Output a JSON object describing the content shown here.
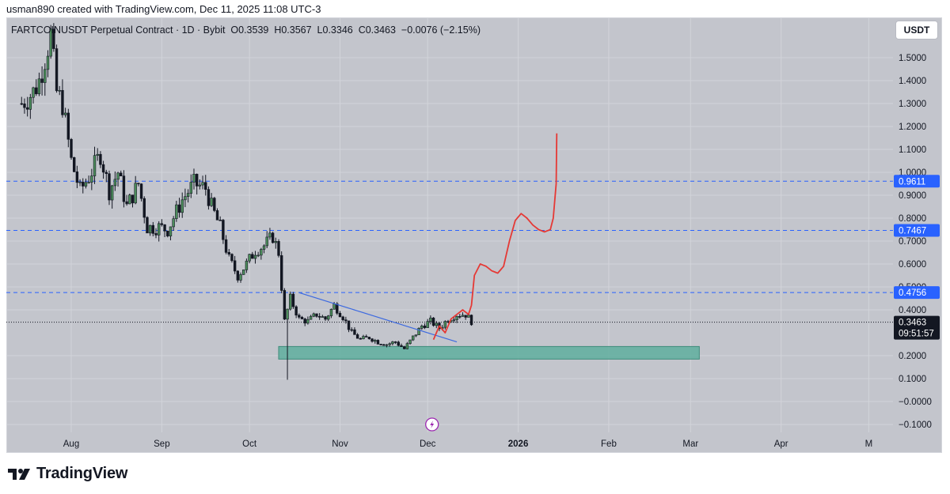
{
  "header": {
    "created_by": "usman890 created with TradingView.com, Dec 11, 2025 11:08 UTC-3"
  },
  "legend": {
    "symbol": "FARTCOINUSDT Perpetual Contract · 1D · Bybit",
    "open": "O0.3539",
    "high": "H0.3567",
    "low": "L0.3346",
    "close": "C0.3463",
    "change": "−0.0076 (−2.15%)"
  },
  "unit_button": "USDT",
  "footer": {
    "brand": "TradingView"
  },
  "colors": {
    "up": "#4d8f5c",
    "down": "#131722",
    "level_line": "#2962ff",
    "projection": "#e53935",
    "zone": "#5fae9e",
    "trendline": "#3d6ae0"
  },
  "chart_data": {
    "type": "candlestick",
    "title": "FARTCOINUSDT Perpetual Contract · 1D · Bybit",
    "xlabel": "",
    "ylabel": "",
    "ylim": [
      -0.13,
      1.6
    ],
    "grid": true,
    "y_ticks": [
      {
        "v": 1.5,
        "label": "1.5000"
      },
      {
        "v": 1.4,
        "label": "1.4000"
      },
      {
        "v": 1.3,
        "label": "1.3000"
      },
      {
        "v": 1.2,
        "label": "1.2000"
      },
      {
        "v": 1.1,
        "label": "1.1000"
      },
      {
        "v": 1.0,
        "label": "1.0000"
      },
      {
        "v": 0.9,
        "label": "0.9000"
      },
      {
        "v": 0.8,
        "label": "0.8000"
      },
      {
        "v": 0.7,
        "label": "0.7000"
      },
      {
        "v": 0.6,
        "label": "0.6000"
      },
      {
        "v": 0.5,
        "label": "0.5000"
      },
      {
        "v": 0.4,
        "label": "0.4000"
      },
      {
        "v": 0.2,
        "label": "0.2000"
      },
      {
        "v": 0.1,
        "label": "0.1000"
      },
      {
        "v": 0.0,
        "label": "−0.0000"
      },
      {
        "v": -0.1,
        "label": "−0.1000"
      }
    ],
    "x_ticks": [
      {
        "day": 17,
        "label": "Aug",
        "bold": false
      },
      {
        "day": 48,
        "label": "Sep",
        "bold": false
      },
      {
        "day": 78,
        "label": "Oct",
        "bold": false
      },
      {
        "day": 109,
        "label": "Nov",
        "bold": false
      },
      {
        "day": 139,
        "label": "Dec",
        "bold": false
      },
      {
        "day": 170,
        "label": "2026",
        "bold": true
      },
      {
        "day": 201,
        "label": "Feb",
        "bold": false
      },
      {
        "day": 229,
        "label": "Mar",
        "bold": false
      },
      {
        "day": 260,
        "label": "Apr",
        "bold": false
      },
      {
        "day": 290,
        "label": "M",
        "bold": false
      }
    ],
    "close_path": [
      [
        0,
        1.3
      ],
      [
        4,
        1.35
      ],
      [
        6,
        1.4
      ],
      [
        8,
        1.5
      ],
      [
        10,
        1.6
      ],
      [
        12,
        1.35
      ],
      [
        14,
        1.3
      ],
      [
        17,
        1.05
      ],
      [
        20,
        0.92
      ],
      [
        23,
        0.98
      ],
      [
        27,
        1.08
      ],
      [
        30,
        0.92
      ],
      [
        33,
        1.0
      ],
      [
        36,
        0.85
      ],
      [
        40,
        0.95
      ],
      [
        43,
        0.76
      ],
      [
        47,
        0.76
      ],
      [
        50,
        0.75
      ],
      [
        55,
        0.88
      ],
      [
        59,
        0.95
      ],
      [
        63,
        0.93
      ],
      [
        65,
        0.85
      ],
      [
        68,
        0.76
      ],
      [
        71,
        0.62
      ],
      [
        74,
        0.55
      ],
      [
        77,
        0.6
      ],
      [
        80,
        0.66
      ],
      [
        83,
        0.68
      ],
      [
        86,
        0.72
      ],
      [
        88,
        0.65
      ],
      [
        90,
        0.35
      ],
      [
        92,
        0.45
      ],
      [
        95,
        0.36
      ],
      [
        98,
        0.35
      ],
      [
        101,
        0.38
      ],
      [
        104,
        0.36
      ],
      [
        107,
        0.42
      ],
      [
        110,
        0.37
      ],
      [
        113,
        0.3
      ],
      [
        116,
        0.27
      ],
      [
        119,
        0.28
      ],
      [
        122,
        0.26
      ],
      [
        125,
        0.25
      ],
      [
        128,
        0.26
      ],
      [
        131,
        0.23
      ],
      [
        134,
        0.28
      ],
      [
        137,
        0.33
      ],
      [
        140,
        0.35
      ],
      [
        143,
        0.32
      ],
      [
        146,
        0.36
      ],
      [
        149,
        0.38
      ],
      [
        152,
        0.38
      ],
      [
        154,
        0.35
      ]
    ],
    "candle_range": {
      "first_day": 0,
      "last_day": 154
    },
    "price_levels": [
      {
        "value": 0.9611,
        "label": "0.9611"
      },
      {
        "value": 0.7467,
        "label": "0.7467"
      },
      {
        "value": 0.4756,
        "label": "0.4756"
      }
    ],
    "last_price": {
      "value": 0.3463,
      "label": "0.3463",
      "countdown": "09:51:57"
    },
    "support_zone": {
      "from_day": 88,
      "to_day": 232,
      "low": 0.185,
      "high": 0.24
    },
    "trendline": {
      "from": [
        95,
        0.475
      ],
      "to": [
        149,
        0.26
      ]
    },
    "projection": [
      [
        141,
        0.27
      ],
      [
        143,
        0.33
      ],
      [
        145,
        0.3
      ],
      [
        147,
        0.36
      ],
      [
        149,
        0.38
      ],
      [
        151,
        0.4
      ],
      [
        153,
        0.38
      ],
      [
        154,
        0.42
      ],
      [
        155,
        0.55
      ],
      [
        157,
        0.6
      ],
      [
        159,
        0.59
      ],
      [
        161,
        0.57
      ],
      [
        163,
        0.56
      ],
      [
        165,
        0.59
      ],
      [
        167,
        0.7
      ],
      [
        169,
        0.79
      ],
      [
        171,
        0.82
      ],
      [
        173,
        0.8
      ],
      [
        175,
        0.77
      ],
      [
        177,
        0.75
      ],
      [
        179,
        0.74
      ],
      [
        181,
        0.75
      ],
      [
        182,
        0.8
      ],
      [
        183,
        0.95
      ],
      [
        183.2,
        1.17
      ]
    ],
    "wick_extreme": {
      "day": 91,
      "low": 0.095
    }
  }
}
